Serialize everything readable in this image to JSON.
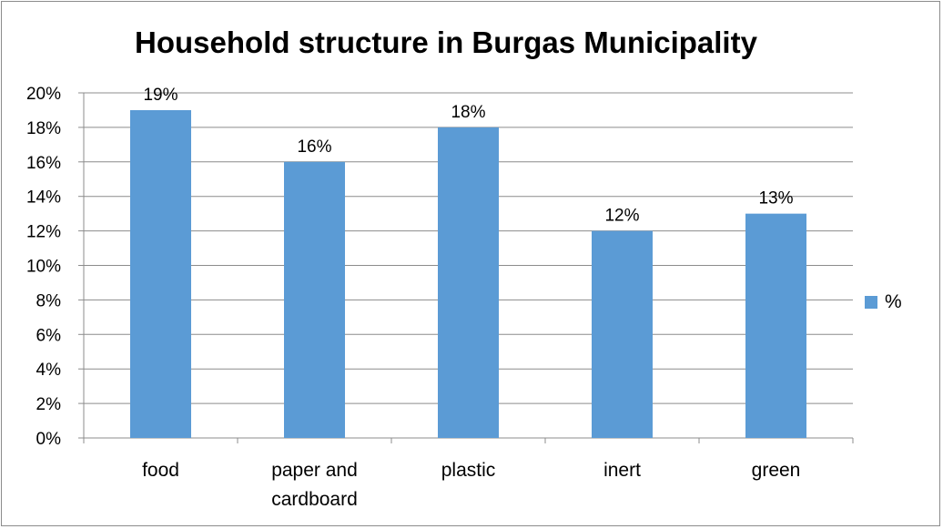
{
  "chart_data": {
    "type": "bar",
    "title": "Household structure in Burgas Municipality",
    "categories": [
      [
        "food"
      ],
      [
        "paper and",
        "cardboard"
      ],
      [
        "plastic"
      ],
      [
        "inert"
      ],
      [
        "green"
      ]
    ],
    "series": [
      {
        "name": "%",
        "values": [
          19,
          16,
          18,
          12,
          13
        ],
        "labels": [
          "19%",
          "16%",
          "18%",
          "12%",
          "13%"
        ]
      }
    ],
    "ylim": [
      0,
      20
    ],
    "yticks": [
      "0%",
      "2%",
      "4%",
      "6%",
      "8%",
      "10%",
      "12%",
      "14%",
      "16%",
      "18%",
      "20%"
    ],
    "grid": true,
    "legend": "right",
    "colors": {
      "bar": "#5b9bd5",
      "grid": "#8c8c8c",
      "axis": "#8c8c8c"
    }
  }
}
